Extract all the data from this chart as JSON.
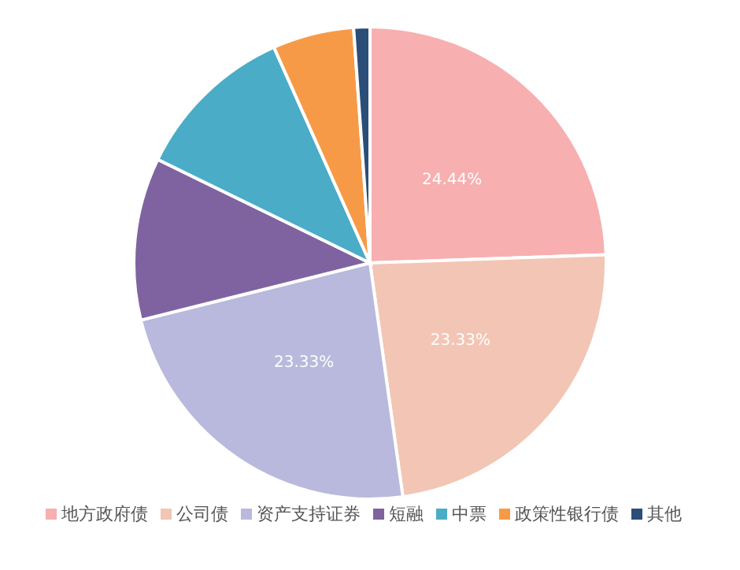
{
  "chart_data": {
    "type": "pie",
    "categories": [
      "地方政府债",
      "公司债",
      "资产支持证券",
      "短融",
      "中票",
      "政策性银行债",
      "其他"
    ],
    "values": [
      24.44,
      23.33,
      23.33,
      11.11,
      11.11,
      5.56,
      1.11
    ],
    "colors": [
      "#f7afb0",
      "#f3c5b5",
      "#b9b9dd",
      "#7f63a0",
      "#4aacc6",
      "#f79a48",
      "#2b4e78"
    ],
    "value_labels": [
      "24.44%",
      "23.33%",
      "23.33%",
      null,
      null,
      null,
      null
    ],
    "legend": "bottom"
  }
}
